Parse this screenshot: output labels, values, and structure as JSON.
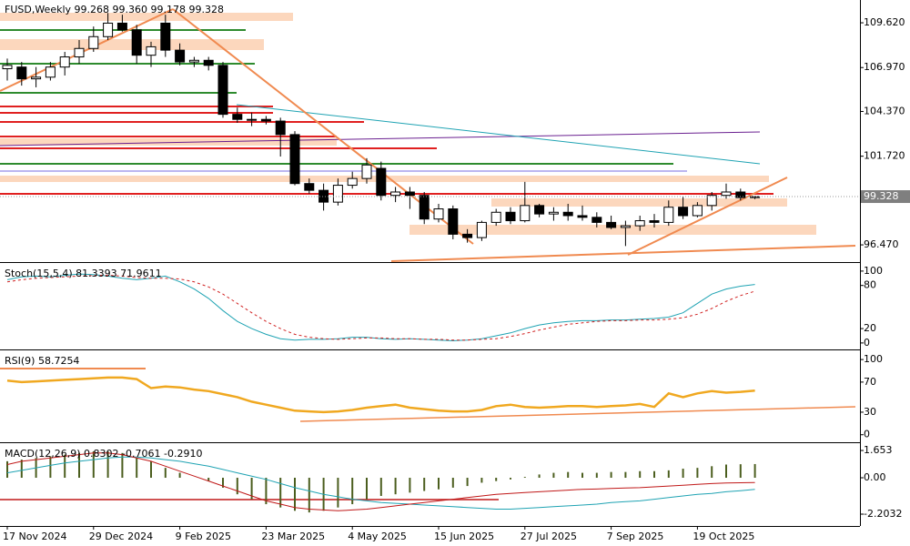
{
  "chart_data": [
    {
      "type": "candlestick",
      "title": "FUSD,Weekly  99.268 99.360 99.178 99.328",
      "categories": [
        "17 Nov 2024",
        null,
        null,
        null,
        null,
        null,
        "29 Dec 2024",
        null,
        null,
        null,
        null,
        null,
        "9 Feb 2025",
        null,
        null,
        null,
        null,
        null,
        "23 Mar 2025",
        null,
        null,
        null,
        null,
        null,
        "4 May 2025",
        null,
        null,
        null,
        null,
        null,
        "15 Jun 2025",
        null,
        null,
        null,
        null,
        null,
        "27 Jul 2025",
        null,
        null,
        null,
        null,
        null,
        "7 Sep 2025",
        null,
        null,
        null,
        null,
        null,
        "19 Oct 2025",
        null,
        null,
        null,
        null
      ],
      "open": [
        106.9,
        107.0,
        106.3,
        106.4,
        107.0,
        107.6,
        108.1,
        108.8,
        109.6,
        109.2,
        107.7,
        109.6,
        108.0,
        107.3,
        107.4,
        107.1,
        104.2,
        103.9,
        103.9,
        103.8,
        103.0,
        100.1,
        99.7,
        99.0,
        100.0,
        100.4,
        101.0,
        99.4,
        99.6,
        99.4,
        98.0,
        98.6,
        97.1,
        96.9,
        97.8,
        98.4,
        97.9,
        98.8,
        98.3,
        98.4,
        98.2,
        98.1,
        97.8,
        97.5,
        97.6,
        97.9,
        97.8,
        98.7,
        98.2,
        98.8,
        99.4,
        99.6,
        99.268
      ],
      "high": [
        107.5,
        107.3,
        107.0,
        107.3,
        107.9,
        108.6,
        109.4,
        110.2,
        110.1,
        109.5,
        108.5,
        110.1,
        108.4,
        107.6,
        107.6,
        107.3,
        104.6,
        104.3,
        104.1,
        104.0,
        103.2,
        100.4,
        100.1,
        100.4,
        100.8,
        101.6,
        101.4,
        99.9,
        99.9,
        99.6,
        98.9,
        98.8,
        97.4,
        97.9,
        98.6,
        98.7,
        100.2,
        98.9,
        98.7,
        98.9,
        98.8,
        98.4,
        98.2,
        97.9,
        98.2,
        98.3,
        99.1,
        99.3,
        99.0,
        99.6,
        100.1,
        99.8,
        99.36
      ],
      "low": [
        106.2,
        105.9,
        105.8,
        106.2,
        106.5,
        107.2,
        107.9,
        108.6,
        109.1,
        107.2,
        107.0,
        107.6,
        107.1,
        107.0,
        106.8,
        104.0,
        103.7,
        103.5,
        103.6,
        101.7,
        100.0,
        99.5,
        98.5,
        98.8,
        99.8,
        100.1,
        99.1,
        99.0,
        98.6,
        97.7,
        97.8,
        96.8,
        96.6,
        96.7,
        97.6,
        97.7,
        97.8,
        98.1,
        97.9,
        97.9,
        97.9,
        97.5,
        97.4,
        96.4,
        97.3,
        97.5,
        97.6,
        98.0,
        98.1,
        98.5,
        99.2,
        99.1,
        99.178
      ],
      "close": [
        107.1,
        106.3,
        106.4,
        107.0,
        107.6,
        108.1,
        108.8,
        109.6,
        109.2,
        107.7,
        108.2,
        108.0,
        107.3,
        107.4,
        107.1,
        104.2,
        103.9,
        103.9,
        103.8,
        103.0,
        100.1,
        99.7,
        99.0,
        100.0,
        100.4,
        101.2,
        99.4,
        99.6,
        99.4,
        98.0,
        98.6,
        97.1,
        96.9,
        97.8,
        98.4,
        97.9,
        98.8,
        98.3,
        98.4,
        98.2,
        98.1,
        97.8,
        97.5,
        97.6,
        97.9,
        97.8,
        98.7,
        98.2,
        98.8,
        99.4,
        99.6,
        99.27,
        99.328
      ],
      "up_color": "#ffffff",
      "down_color": "#000000",
      "ylim": [
        95.45,
        110.97
      ],
      "yticks": [
        {
          "value": 109.62,
          "label": "109.620"
        },
        {
          "value": 106.97,
          "label": "106.970"
        },
        {
          "value": 104.37,
          "label": "104.370"
        },
        {
          "value": 101.72,
          "label": "101.720"
        },
        {
          "value": 96.47,
          "label": "96.470"
        }
      ]
    },
    {
      "type": "line",
      "title": "Stoch(15,5,4) 81.3393 71.9611",
      "ylim": [
        -9,
        110
      ],
      "yticks": [
        100,
        80,
        20,
        0
      ],
      "series": [
        {
          "color": "#1fa3b3",
          "line_style": "solid",
          "values": [
            88,
            92,
            93,
            92,
            94,
            96,
            95,
            93,
            90,
            88,
            90,
            93,
            85,
            75,
            62,
            45,
            30,
            20,
            12,
            6,
            4,
            5,
            5,
            6,
            8,
            8,
            6,
            5,
            6,
            5,
            4,
            3,
            4,
            6,
            10,
            14,
            20,
            25,
            28,
            30,
            31,
            31,
            32,
            32,
            33,
            34,
            36,
            42,
            55,
            68,
            75,
            79,
            81.3393
          ]
        },
        {
          "color": "#d02020",
          "line_style": "dashed",
          "values": [
            85,
            88,
            90,
            91,
            92,
            93,
            94,
            94,
            93,
            91,
            90,
            90,
            89,
            85,
            78,
            68,
            55,
            42,
            30,
            20,
            12,
            8,
            6,
            5,
            6,
            7,
            7,
            6,
            6,
            5,
            5,
            4,
            4,
            5,
            6,
            9,
            13,
            18,
            22,
            26,
            28,
            30,
            31,
            31,
            32,
            32,
            33,
            35,
            40,
            48,
            58,
            66,
            71.9611
          ]
        }
      ]
    },
    {
      "type": "line",
      "title": "RSI(9) 58.7254",
      "ylim": [
        -10,
        111
      ],
      "yticks": [
        100,
        70,
        30,
        0
      ],
      "series": [
        {
          "color": "#f0a820",
          "line_style": "thick",
          "values": [
            72,
            70,
            71,
            72,
            73,
            74,
            75,
            76,
            76,
            74,
            62,
            64,
            63,
            60,
            58,
            54,
            50,
            44,
            40,
            36,
            32,
            31,
            30,
            31,
            33,
            36,
            38,
            40,
            36,
            34,
            32,
            31,
            31,
            33,
            38,
            40,
            37,
            36,
            37,
            38,
            38,
            37,
            38,
            39,
            41,
            37,
            55,
            50,
            55,
            58,
            56,
            57,
            58.7254
          ]
        }
      ]
    },
    {
      "type": "combo",
      "title": "MACD(12,26,9) 0.8302 -0.7061 -0.2910",
      "ylim": [
        -2.92,
        2.04
      ],
      "yticks": [
        1.653,
        {
          "value": 0,
          "label": "0.00"
        },
        -2.2032
      ],
      "series": [
        {
          "kind": "bar",
          "color": "#4b5e1e",
          "values": [
            1.0,
            1.1,
            1.2,
            1.3,
            1.4,
            1.5,
            1.6,
            1.6,
            1.5,
            1.2,
            1.0,
            0.6,
            0.3,
            0.0,
            -0.2,
            -0.6,
            -1.0,
            -1.3,
            -1.6,
            -1.8,
            -2.0,
            -2.1,
            -2.0,
            -1.8,
            -1.6,
            -1.3,
            -1.1,
            -1.0,
            -0.9,
            -0.8,
            -0.7,
            -0.6,
            -0.5,
            -0.3,
            -0.2,
            -0.1,
            0.05,
            0.2,
            0.3,
            0.35,
            0.3,
            0.3,
            0.35,
            0.35,
            0.4,
            0.4,
            0.45,
            0.55,
            0.6,
            0.7,
            0.8,
            0.82,
            0.8302
          ]
        },
        {
          "kind": "line",
          "color": "#1fa3b3",
          "values": [
            0.3,
            0.45,
            0.6,
            0.75,
            0.9,
            1.0,
            1.1,
            1.2,
            1.25,
            1.25,
            1.2,
            1.1,
            1.0,
            0.85,
            0.7,
            0.5,
            0.3,
            0.1,
            -0.1,
            -0.35,
            -0.6,
            -0.8,
            -1.0,
            -1.15,
            -1.3,
            -1.4,
            -1.5,
            -1.55,
            -1.6,
            -1.65,
            -1.7,
            -1.75,
            -1.8,
            -1.85,
            -1.9,
            -1.9,
            -1.85,
            -1.8,
            -1.75,
            -1.7,
            -1.65,
            -1.6,
            -1.5,
            -1.45,
            -1.4,
            -1.3,
            -1.2,
            -1.1,
            -1.0,
            -0.95,
            -0.85,
            -0.78,
            -0.7061
          ]
        },
        {
          "kind": "line",
          "color": "#c01818",
          "values": [
            0.8,
            1.0,
            1.1,
            1.2,
            1.3,
            1.4,
            1.5,
            1.5,
            1.4,
            1.2,
            1.0,
            0.7,
            0.4,
            0.1,
            -0.2,
            -0.5,
            -0.8,
            -1.1,
            -1.4,
            -1.6,
            -1.8,
            -1.9,
            -1.95,
            -2.0,
            -1.95,
            -1.9,
            -1.8,
            -1.7,
            -1.6,
            -1.5,
            -1.4,
            -1.3,
            -1.2,
            -1.1,
            -1.0,
            -0.95,
            -0.9,
            -0.85,
            -0.8,
            -0.75,
            -0.7,
            -0.68,
            -0.65,
            -0.62,
            -0.6,
            -0.55,
            -0.5,
            -0.45,
            -0.4,
            -0.35,
            -0.32,
            -0.3,
            -0.291
          ]
        }
      ]
    }
  ]
}
